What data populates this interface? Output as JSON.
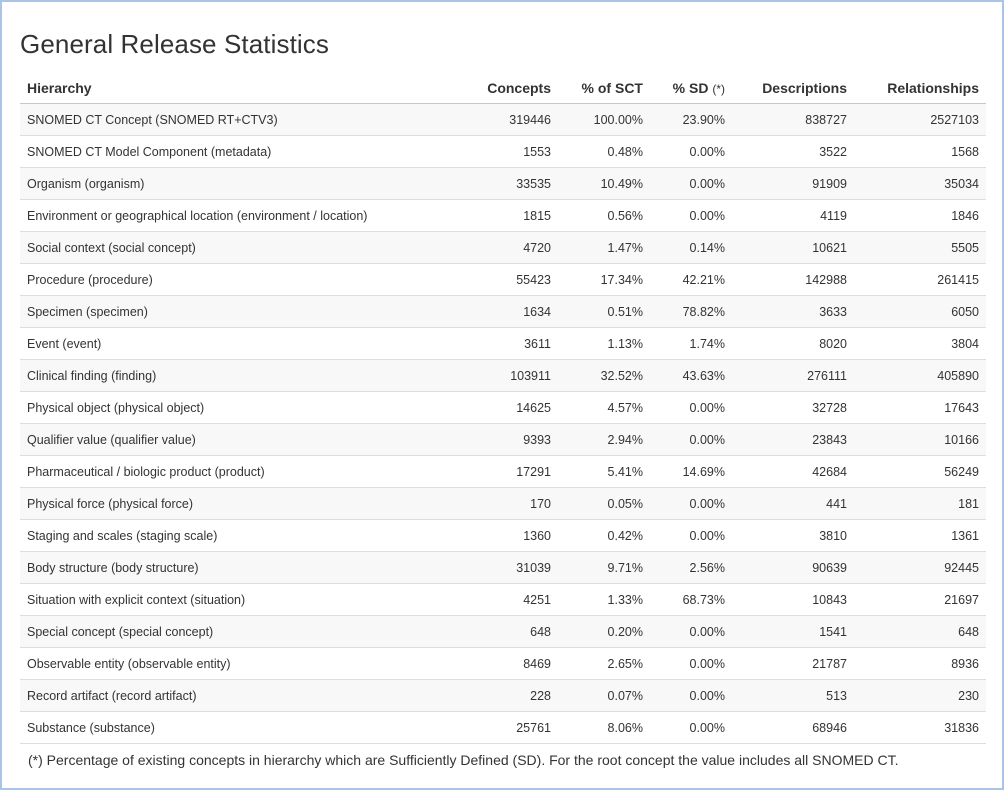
{
  "page": {
    "title": "General Release Statistics",
    "footnote": "(*) Percentage of existing concepts in hierarchy which are Sufficiently Defined (SD). For the root concept the value includes all SNOMED CT."
  },
  "table": {
    "headers": {
      "hierarchy": "Hierarchy",
      "concepts": "Concepts",
      "pct_sct": "% of SCT",
      "pct_sd": "% SD",
      "pct_sd_marker": "(*)",
      "descriptions": "Descriptions",
      "relationships": "Relationships"
    },
    "rows": [
      {
        "hierarchy": "SNOMED CT Concept (SNOMED RT+CTV3)",
        "concepts": "319446",
        "pct_sct": "100.00%",
        "pct_sd": "23.90%",
        "descriptions": "838727",
        "relationships": "2527103"
      },
      {
        "hierarchy": "SNOMED CT Model Component (metadata)",
        "concepts": "1553",
        "pct_sct": "0.48%",
        "pct_sd": "0.00%",
        "descriptions": "3522",
        "relationships": "1568"
      },
      {
        "hierarchy": "Organism (organism)",
        "concepts": "33535",
        "pct_sct": "10.49%",
        "pct_sd": "0.00%",
        "descriptions": "91909",
        "relationships": "35034"
      },
      {
        "hierarchy": "Environment or geographical location (environment / location)",
        "concepts": "1815",
        "pct_sct": "0.56%",
        "pct_sd": "0.00%",
        "descriptions": "4119",
        "relationships": "1846"
      },
      {
        "hierarchy": "Social context (social concept)",
        "concepts": "4720",
        "pct_sct": "1.47%",
        "pct_sd": "0.14%",
        "descriptions": "10621",
        "relationships": "5505"
      },
      {
        "hierarchy": "Procedure (procedure)",
        "concepts": "55423",
        "pct_sct": "17.34%",
        "pct_sd": "42.21%",
        "descriptions": "142988",
        "relationships": "261415"
      },
      {
        "hierarchy": "Specimen (specimen)",
        "concepts": "1634",
        "pct_sct": "0.51%",
        "pct_sd": "78.82%",
        "descriptions": "3633",
        "relationships": "6050"
      },
      {
        "hierarchy": "Event (event)",
        "concepts": "3611",
        "pct_sct": "1.13%",
        "pct_sd": "1.74%",
        "descriptions": "8020",
        "relationships": "3804"
      },
      {
        "hierarchy": "Clinical finding (finding)",
        "concepts": "103911",
        "pct_sct": "32.52%",
        "pct_sd": "43.63%",
        "descriptions": "276111",
        "relationships": "405890"
      },
      {
        "hierarchy": "Physical object (physical object)",
        "concepts": "14625",
        "pct_sct": "4.57%",
        "pct_sd": "0.00%",
        "descriptions": "32728",
        "relationships": "17643"
      },
      {
        "hierarchy": "Qualifier value (qualifier value)",
        "concepts": "9393",
        "pct_sct": "2.94%",
        "pct_sd": "0.00%",
        "descriptions": "23843",
        "relationships": "10166"
      },
      {
        "hierarchy": "Pharmaceutical / biologic product (product)",
        "concepts": "17291",
        "pct_sct": "5.41%",
        "pct_sd": "14.69%",
        "descriptions": "42684",
        "relationships": "56249"
      },
      {
        "hierarchy": "Physical force (physical force)",
        "concepts": "170",
        "pct_sct": "0.05%",
        "pct_sd": "0.00%",
        "descriptions": "441",
        "relationships": "181"
      },
      {
        "hierarchy": "Staging and scales (staging scale)",
        "concepts": "1360",
        "pct_sct": "0.42%",
        "pct_sd": "0.00%",
        "descriptions": "3810",
        "relationships": "1361"
      },
      {
        "hierarchy": "Body structure (body structure)",
        "concepts": "31039",
        "pct_sct": "9.71%",
        "pct_sd": "2.56%",
        "descriptions": "90639",
        "relationships": "92445"
      },
      {
        "hierarchy": "Situation with explicit context (situation)",
        "concepts": "4251",
        "pct_sct": "1.33%",
        "pct_sd": "68.73%",
        "descriptions": "10843",
        "relationships": "21697"
      },
      {
        "hierarchy": "Special concept (special concept)",
        "concepts": "648",
        "pct_sct": "0.20%",
        "pct_sd": "0.00%",
        "descriptions": "1541",
        "relationships": "648"
      },
      {
        "hierarchy": "Observable entity (observable entity)",
        "concepts": "8469",
        "pct_sct": "2.65%",
        "pct_sd": "0.00%",
        "descriptions": "21787",
        "relationships": "8936"
      },
      {
        "hierarchy": "Record artifact (record artifact)",
        "concepts": "228",
        "pct_sct": "0.07%",
        "pct_sd": "0.00%",
        "descriptions": "513",
        "relationships": "230"
      },
      {
        "hierarchy": "Substance (substance)",
        "concepts": "25761",
        "pct_sct": "8.06%",
        "pct_sd": "0.00%",
        "descriptions": "68946",
        "relationships": "31836"
      }
    ]
  }
}
